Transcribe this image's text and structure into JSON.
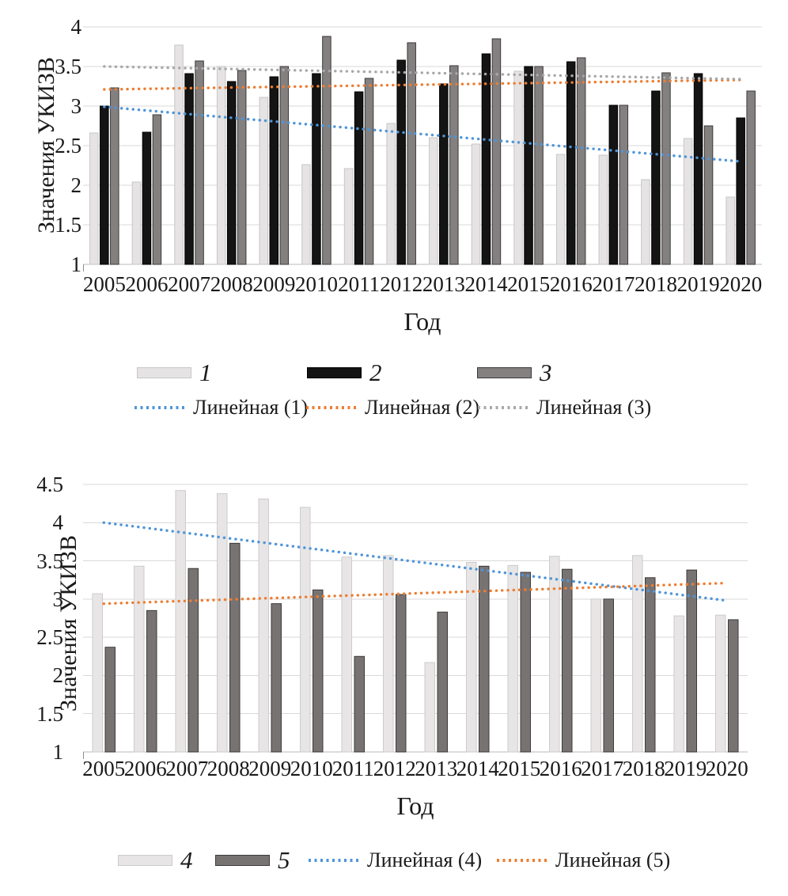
{
  "figure": {
    "background": "#ffffff"
  },
  "chart_data": [
    {
      "type": "bar",
      "title": "",
      "ylabel": "Значения УКИЗВ",
      "xlabel": "Год",
      "ylim": [
        1,
        4
      ],
      "yticks": [
        4,
        3.5,
        3,
        2.5,
        2,
        1.5,
        1
      ],
      "grid": true,
      "legend_position": "bottom",
      "categories": [
        "2005",
        "2006",
        "2007",
        "2008",
        "2009",
        "2010",
        "2011",
        "2012",
        "2013",
        "2014",
        "2015",
        "2016",
        "2017",
        "2018",
        "2019",
        "2020"
      ],
      "series": [
        {
          "name": "1",
          "color": "#e5e3e3",
          "border": "#c9c6c6",
          "values": [
            2.66,
            2.04,
            3.77,
            3.5,
            3.11,
            2.26,
            2.21,
            2.78,
            2.6,
            2.52,
            3.44,
            2.39,
            2.38,
            2.07,
            2.59,
            1.85
          ]
        },
        {
          "name": "2",
          "color": "#141414",
          "border": "#000000",
          "values": [
            3.0,
            2.67,
            3.41,
            3.31,
            3.37,
            3.41,
            3.18,
            3.58,
            3.28,
            3.66,
            3.5,
            3.56,
            3.01,
            3.19,
            3.41,
            2.85
          ]
        },
        {
          "name": "3",
          "color": "#848080",
          "border": "#3a3a3a",
          "values": [
            3.23,
            2.89,
            3.57,
            3.45,
            3.5,
            3.88,
            3.35,
            3.8,
            3.51,
            3.85,
            3.5,
            3.61,
            3.01,
            3.42,
            2.75,
            3.19
          ]
        }
      ],
      "trendlines": [
        {
          "name": "Линейная (1)",
          "color": "#4e95d9",
          "start": 2.99,
          "end": 2.3
        },
        {
          "name": "Линейная (2)",
          "color": "#ed7d31",
          "start": 3.21,
          "end": 3.33
        },
        {
          "name": "Линейная (3)",
          "color": "#a8a8a8",
          "start": 3.5,
          "end": 3.34
        }
      ]
    },
    {
      "type": "bar",
      "title": "",
      "ylabel": "Значения УКИЗВ",
      "xlabel": "Год",
      "ylim": [
        1,
        4.5
      ],
      "yticks": [
        4.5,
        4,
        3.5,
        3,
        2.5,
        2,
        1.5,
        1
      ],
      "grid": true,
      "legend_position": "bottom",
      "categories": [
        "2005",
        "2006",
        "2007",
        "2008",
        "2009",
        "2010",
        "2011",
        "2012",
        "2013",
        "2014",
        "2015",
        "2016",
        "2017",
        "2018",
        "2019",
        "2020"
      ],
      "series": [
        {
          "name": "4",
          "color": "#e7e5e5",
          "border": "#cecbcb",
          "values": [
            3.07,
            3.43,
            4.42,
            4.38,
            4.31,
            4.2,
            3.55,
            3.57,
            2.17,
            3.48,
            3.44,
            3.56,
            3.0,
            3.57,
            2.78,
            2.79
          ]
        },
        {
          "name": "5",
          "color": "#787373",
          "border": "#3e3a3a",
          "values": [
            2.37,
            2.85,
            3.4,
            3.73,
            2.94,
            3.12,
            2.25,
            3.06,
            2.83,
            3.43,
            3.35,
            3.39,
            3.0,
            3.28,
            3.38,
            2.73
          ]
        }
      ],
      "trendlines": [
        {
          "name": "Линейная (4)",
          "color": "#4e95d9",
          "start": 4.0,
          "end": 2.98
        },
        {
          "name": "Линейная (5)",
          "color": "#ed7d31",
          "start": 2.94,
          "end": 3.21
        }
      ]
    }
  ]
}
